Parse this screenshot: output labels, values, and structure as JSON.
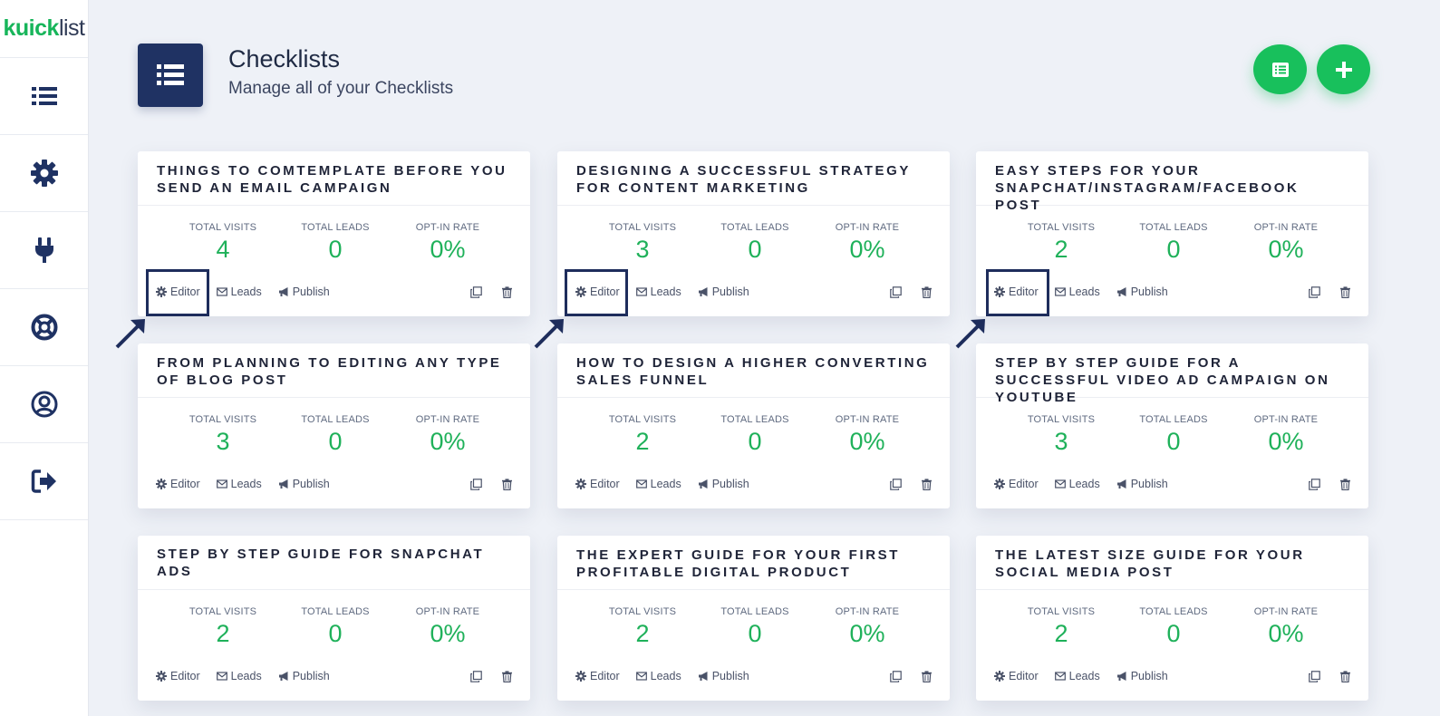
{
  "app": {
    "logo_bold": "kuick",
    "logo_light": "list"
  },
  "sidebar": {
    "items": [
      {
        "name": "checklists",
        "icon": "list-icon"
      },
      {
        "name": "settings",
        "icon": "gear-icon"
      },
      {
        "name": "integrations",
        "icon": "plug-icon"
      },
      {
        "name": "support",
        "icon": "life-ring-icon"
      },
      {
        "name": "account",
        "icon": "user-circle-icon"
      },
      {
        "name": "logout",
        "icon": "sign-out-icon"
      }
    ]
  },
  "header": {
    "title": "Checklists",
    "subtitle": "Manage all of your Checklists"
  },
  "labels": {
    "total_visits": "TOTAL VISITS",
    "total_leads": "TOTAL LEADS",
    "optin_rate": "OPT-IN RATE",
    "editor": "Editor",
    "leads": "Leads",
    "publish": "Publish"
  },
  "colors": {
    "brand": "#17b55a",
    "accent_navy": "#1f3263",
    "stat_green": "#1fb15a"
  },
  "cards": [
    {
      "title": "THINGS TO COMTEMPLATE BEFORE YOU SEND AN EMAIL CAMPAIGN",
      "visits": "4",
      "leads": "0",
      "rate": "0%"
    },
    {
      "title": "DESIGNING A SUCCESSFUL STRATEGY FOR CONTENT MARKETING",
      "visits": "3",
      "leads": "0",
      "rate": "0%"
    },
    {
      "title": "EASY STEPS FOR YOUR SNAPCHAT/INSTAGRAM/FACEBOOK POST",
      "visits": "2",
      "leads": "0",
      "rate": "0%"
    },
    {
      "title": "FROM PLANNING TO EDITING ANY TYPE OF BLOG POST",
      "visits": "3",
      "leads": "0",
      "rate": "0%"
    },
    {
      "title": "HOW TO DESIGN A HIGHER CONVERTING SALES FUNNEL",
      "visits": "2",
      "leads": "0",
      "rate": "0%"
    },
    {
      "title": "STEP BY STEP GUIDE FOR A SUCCESSFUL VIDEO AD CAMPAIGN ON YOUTUBE",
      "visits": "3",
      "leads": "0",
      "rate": "0%"
    },
    {
      "title": "STEP BY STEP GUIDE FOR SNAPCHAT ADS",
      "visits": "2",
      "leads": "0",
      "rate": "0%"
    },
    {
      "title": "THE EXPERT GUIDE FOR YOUR FIRST PROFITABLE DIGITAL PRODUCT",
      "visits": "2",
      "leads": "0",
      "rate": "0%"
    },
    {
      "title": "THE LATEST SIZE GUIDE FOR YOUR SOCIAL MEDIA POST",
      "visits": "2",
      "leads": "0",
      "rate": "0%"
    }
  ]
}
